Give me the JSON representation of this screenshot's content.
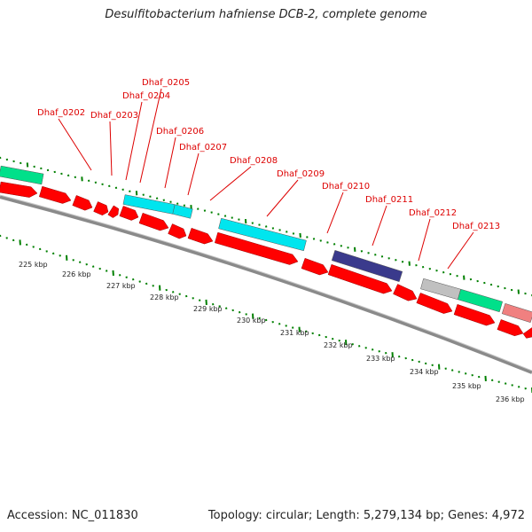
{
  "title": "Desulfitobacterium hafniense DCB-2, complete genome",
  "footer": {
    "accession": "Accession: NC_011830",
    "summary": "Topology: circular; Length: 5,279,134 bp; Genes: 4,972"
  },
  "colors": {
    "cds": "#ff0000",
    "trna_cyan": "#00e5ee",
    "green": "#00e08a",
    "purple": "#3a3a8c",
    "gray": "#c0c0c0",
    "pink": "#f08080",
    "backbone": "#888888",
    "tick": "#008000",
    "label": "#dd0000"
  },
  "gene_labels": [
    "Dhaf_0202",
    "Dhaf_0203",
    "Dhaf_0204",
    "Dhaf_0205",
    "Dhaf_0206",
    "Dhaf_0207",
    "Dhaf_0208",
    "Dhaf_0209",
    "Dhaf_0210",
    "Dhaf_0211",
    "Dhaf_0212",
    "Dhaf_0213"
  ],
  "kbp_labels": [
    "225 kbp",
    "226 kbp",
    "227 kbp",
    "228 kbp",
    "229 kbp",
    "230 kbp",
    "231 kbp",
    "232 kbp",
    "233 kbp",
    "234 kbp",
    "235 kbp",
    "236 kbp"
  ]
}
